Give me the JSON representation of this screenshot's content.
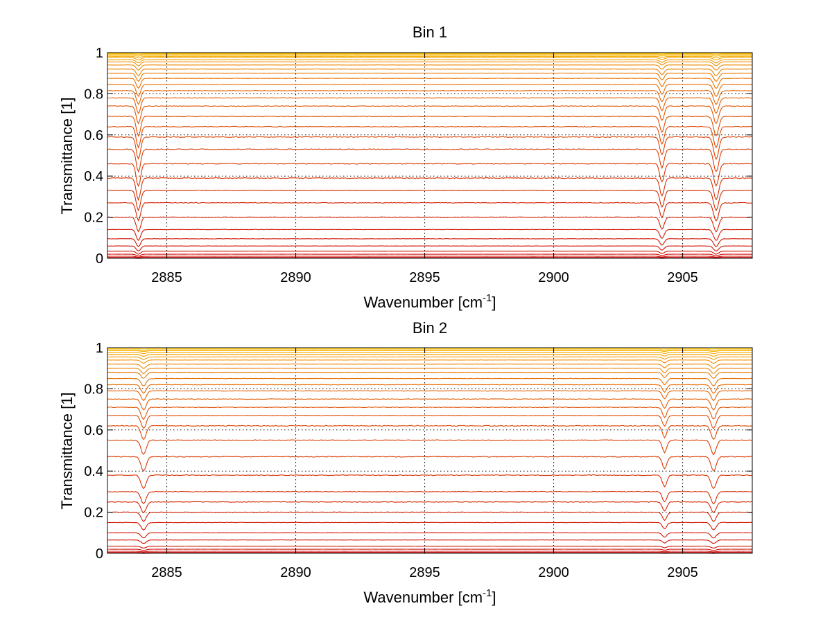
{
  "chart_data": [
    {
      "type": "line",
      "title": "Bin 1",
      "xlabel": "Wavenumber [cm",
      "xlabel_sup": "-1",
      "xlabel_end": "]",
      "ylabel": "Transmittance [1]",
      "xlim": [
        2882.7,
        2907.7
      ],
      "ylim": [
        0,
        1
      ],
      "xticks": [
        2885,
        2890,
        2895,
        2900,
        2905
      ],
      "yticks": [
        0,
        0.2,
        0.4,
        0.6,
        0.8,
        1
      ],
      "ytick_labels": [
        "0",
        "0.2",
        "0.4",
        "0.6",
        "0.8",
        "1"
      ],
      "grid": true,
      "absorption_lines": [
        {
          "center": 2883.9,
          "width": 0.12,
          "relative_depth": 0.11
        },
        {
          "center": 2904.2,
          "width": 0.12,
          "relative_depth": 0.09
        },
        {
          "center": 2906.3,
          "width": 0.14,
          "relative_depth": 0.11
        }
      ],
      "baseline_levels": [
        0.0,
        0.005,
        0.01,
        0.02,
        0.035,
        0.06,
        0.095,
        0.14,
        0.2,
        0.27,
        0.33,
        0.39,
        0.46,
        0.53,
        0.59,
        0.64,
        0.69,
        0.74,
        0.78,
        0.815,
        0.845,
        0.875,
        0.9,
        0.92,
        0.94,
        0.955,
        0.965,
        0.975,
        0.982,
        0.988,
        0.993,
        0.997,
        1.0
      ],
      "color_range": [
        "#cc0000",
        "#ffcc00"
      ]
    },
    {
      "type": "line",
      "title": "Bin 2",
      "xlabel": "Wavenumber [cm",
      "xlabel_sup": "-1",
      "xlabel_end": "]",
      "ylabel": "Transmittance [1]",
      "xlim": [
        2882.7,
        2907.7
      ],
      "ylim": [
        0,
        1
      ],
      "xticks": [
        2885,
        2890,
        2895,
        2900,
        2905
      ],
      "yticks": [
        0,
        0.2,
        0.4,
        0.6,
        0.8,
        1
      ],
      "ytick_labels": [
        "0",
        "0.2",
        "0.4",
        "0.6",
        "0.8",
        "1"
      ],
      "grid": true,
      "absorption_lines": [
        {
          "center": 2884.1,
          "width": 0.14,
          "relative_depth": 0.07
        },
        {
          "center": 2904.3,
          "width": 0.12,
          "relative_depth": 0.06
        },
        {
          "center": 2906.2,
          "width": 0.14,
          "relative_depth": 0.07
        }
      ],
      "baseline_levels": [
        0.0,
        0.005,
        0.01,
        0.02,
        0.035,
        0.065,
        0.1,
        0.15,
        0.2,
        0.25,
        0.3,
        0.38,
        0.47,
        0.55,
        0.62,
        0.67,
        0.71,
        0.75,
        0.79,
        0.82,
        0.85,
        0.88,
        0.9,
        0.92,
        0.94,
        0.955,
        0.967,
        0.977,
        0.985,
        0.99,
        0.995,
        1.0
      ],
      "color_range": [
        "#cc0000",
        "#ffcc00"
      ]
    }
  ]
}
